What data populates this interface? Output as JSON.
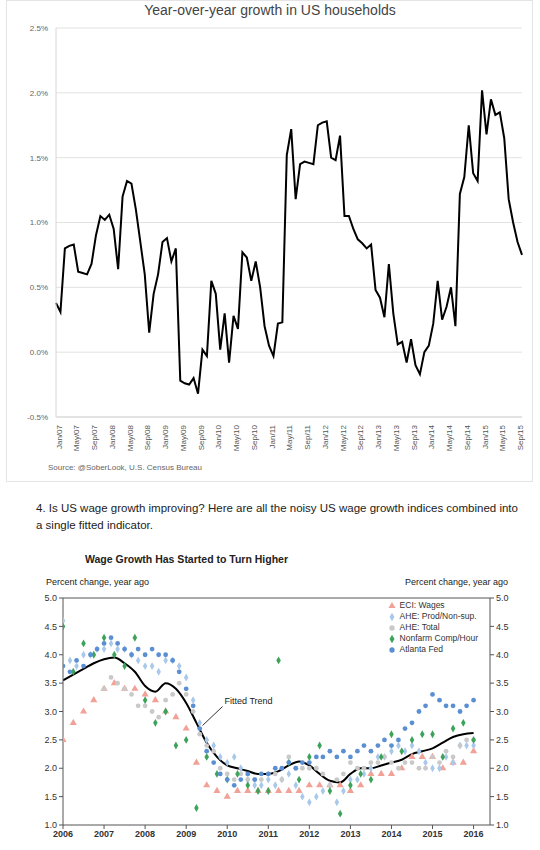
{
  "chart_data": [
    {
      "type": "line",
      "title": "Year-over-year growth in US households",
      "source": "Source: @SoberLook, U.S. Census Bureau",
      "categories": [
        "Jan/07",
        null,
        null,
        null,
        "May/07",
        null,
        null,
        null,
        "Sep/07",
        null,
        null,
        null,
        "Jan/08",
        null,
        null,
        null,
        "May/08",
        null,
        null,
        null,
        "Sep/08",
        null,
        null,
        null,
        "Jan/09",
        null,
        null,
        null,
        "May/09",
        null,
        null,
        null,
        "Sep/09",
        null,
        null,
        null,
        "Jan/10",
        null,
        null,
        null,
        "May/10",
        null,
        null,
        null,
        "Sep/10",
        null,
        null,
        null,
        "Jan/11",
        null,
        null,
        null,
        "May/11",
        null,
        null,
        null,
        "Sep/11",
        null,
        null,
        null,
        "Jan/12",
        null,
        null,
        null,
        "May/12",
        null,
        null,
        null,
        "Sep/12",
        null,
        null,
        null,
        "Jan/13",
        null,
        null,
        null,
        "May/13",
        null,
        null,
        null,
        "Sep/13",
        null,
        null,
        null,
        "Jan/14",
        null,
        null,
        null,
        "May/14",
        null,
        null,
        null,
        "Sep/14",
        null,
        null,
        null,
        "Jan/15",
        null,
        null,
        null,
        "May/15",
        null,
        null,
        null,
        "Sep/15",
        null
      ],
      "values": [
        0.38,
        0.31,
        0.8,
        0.82,
        0.83,
        0.62,
        0.61,
        0.6,
        0.68,
        0.9,
        1.05,
        1.02,
        1.06,
        0.95,
        0.64,
        1.2,
        1.32,
        1.3,
        1.1,
        0.85,
        0.6,
        0.15,
        0.45,
        0.6,
        0.85,
        0.88,
        0.7,
        0.8,
        -0.22,
        -0.24,
        -0.25,
        -0.2,
        -0.32,
        0.02,
        -0.03,
        0.55,
        0.45,
        0.02,
        0.3,
        -0.08,
        0.28,
        0.18,
        0.77,
        0.73,
        0.55,
        0.7,
        0.5,
        0.2,
        0.05,
        -0.03,
        0.22,
        0.23,
        1.52,
        1.72,
        1.18,
        1.45,
        1.47,
        1.46,
        1.45,
        1.75,
        1.77,
        1.78,
        1.5,
        1.48,
        1.67,
        1.05,
        1.05,
        0.95,
        0.87,
        0.84,
        0.8,
        0.83,
        0.48,
        0.42,
        0.27,
        0.68,
        0.3,
        0.06,
        0.08,
        -0.08,
        0.1,
        -0.1,
        -0.17,
        0,
        0.05,
        0.22,
        0.55,
        0.25,
        0.35,
        0.5,
        0.2,
        1.22,
        1.35,
        1.75,
        1.38,
        1.32,
        2.02,
        1.68,
        1.95,
        1.83,
        1.85,
        1.65,
        1.18,
        1.0,
        0.85,
        0.75
      ],
      "color": "#000000",
      "line_style": "solid",
      "ylim": [
        -0.5,
        2.5
      ],
      "yticks": [
        {
          "value": -0.5,
          "label": "-0.5%"
        },
        {
          "value": 0,
          "label": "0.0%"
        },
        {
          "value": 0.5,
          "label": "0.5%"
        },
        {
          "value": 1,
          "label": "1.0%"
        },
        {
          "value": 1.5,
          "label": "1.5%"
        },
        {
          "value": 2,
          "label": "2.0%"
        },
        {
          "value": 2.5,
          "label": "2.5%"
        }
      ],
      "grid": true
    },
    {
      "type": "scatter",
      "title": "Wage Growth Has Started to Turn Higher",
      "ylabel": "Percent change, year ago",
      "y2label": "Percent change, year ago",
      "xlim": [
        2006,
        2016.4
      ],
      "xticks": [
        2006,
        2007,
        2008,
        2009,
        2010,
        2011,
        2012,
        2013,
        2014,
        2015,
        2016
      ],
      "ylim": [
        1,
        5
      ],
      "yticks": [
        {
          "value": 1,
          "label": "1.0"
        },
        1.5,
        {
          "value": 2,
          "label": "2.0"
        },
        2.5,
        {
          "value": 3,
          "label": "3.0"
        },
        3.5,
        {
          "value": 4,
          "label": "4.0"
        },
        4.5,
        {
          "value": 5,
          "label": "5.0"
        }
      ],
      "y2lim": [
        1,
        5
      ],
      "y2ticks": [
        {
          "value": 1,
          "label": "1.0"
        },
        1.5,
        {
          "value": 2,
          "label": "2.0"
        },
        2.5,
        {
          "value": 3,
          "label": "3.0"
        },
        3.5,
        {
          "value": 4,
          "label": "4.0"
        },
        4.5,
        {
          "value": 5,
          "label": "5.0"
        }
      ],
      "grid": false,
      "legend": "upper right",
      "annotations": [
        {
          "text": "Fitted Trend",
          "x": 2009.35,
          "y": 2.7
        }
      ],
      "series": [
        {
          "name": "ECI: Wages",
          "type": "scatter",
          "color": "#f2a197",
          "marker": "triangle",
          "x": [
            2006,
            2006.25,
            2006.5,
            2006.75,
            2007,
            2007.25,
            2007.5,
            2007.75,
            2008,
            2008.25,
            2008.5,
            2008.75,
            2009,
            2009.25,
            2009.5,
            2009.75,
            2010,
            2010.25,
            2010.5,
            2010.75,
            2011,
            2011.25,
            2011.5,
            2011.75,
            2012,
            2012.25,
            2012.5,
            2012.75,
            2013,
            2013.25,
            2013.5,
            2013.75,
            2014,
            2014.25,
            2014.5,
            2014.75,
            2015,
            2015.25,
            2015.5,
            2015.75,
            2016
          ],
          "values": [
            2.5,
            2.8,
            3.0,
            3.2,
            3.4,
            3.5,
            3.4,
            3.4,
            3.3,
            3.2,
            3.0,
            2.9,
            2.7,
            2.1,
            1.7,
            1.6,
            1.5,
            1.6,
            1.6,
            1.6,
            1.6,
            1.6,
            1.6,
            1.6,
            1.7,
            1.7,
            1.7,
            1.7,
            1.6,
            1.7,
            1.9,
            1.9,
            1.9,
            2.0,
            2.2,
            2.2,
            2.2,
            2.0,
            2.1,
            2.1,
            2.3
          ]
        },
        {
          "name": "AHE: Prod/Non-sup.",
          "type": "scatter",
          "color": "#a9c9ea",
          "marker": "diamond",
          "x": [
            2006,
            2006.17,
            2006.33,
            2006.5,
            2006.67,
            2006.83,
            2007,
            2007.17,
            2007.33,
            2007.5,
            2007.67,
            2007.83,
            2008,
            2008.17,
            2008.33,
            2008.5,
            2008.67,
            2008.83,
            2009,
            2009.17,
            2009.33,
            2009.5,
            2009.67,
            2009.83,
            2010,
            2010.17,
            2010.33,
            2010.5,
            2010.67,
            2010.83,
            2011,
            2011.17,
            2011.33,
            2011.5,
            2011.67,
            2011.83,
            2012,
            2012.17,
            2012.33,
            2012.5,
            2012.67,
            2012.83,
            2013,
            2013.17,
            2013.33,
            2013.5,
            2013.67,
            2013.83,
            2014,
            2014.17,
            2014.33,
            2014.5,
            2014.67,
            2014.83,
            2015,
            2015.17,
            2015.33,
            2015.5,
            2015.67,
            2015.83,
            2016
          ],
          "values": [
            4.6,
            3.9,
            3.8,
            4.0,
            4.0,
            4.1,
            4.1,
            4.2,
            4.1,
            4.1,
            4.0,
            3.9,
            3.8,
            3.8,
            3.7,
            3.9,
            3.9,
            3.8,
            3.6,
            3.2,
            2.8,
            2.5,
            2.4,
            2.2,
            2.1,
            2.2,
            2.0,
            1.8,
            1.7,
            1.7,
            1.8,
            1.7,
            1.8,
            1.9,
            1.7,
            1.5,
            1.4,
            1.5,
            1.6,
            1.7,
            1.4,
            1.6,
            1.8,
            1.8,
            1.9,
            2.0,
            2.2,
            2.2,
            2.3,
            2.4,
            2.3,
            2.4,
            2.3,
            2.1,
            2.0,
            2.0,
            2.2,
            2.1,
            2.4,
            2.4,
            2.4
          ]
        },
        {
          "name": "AHE: Total",
          "type": "scatter",
          "color": "#c9c9c9",
          "marker": "circle",
          "x": [
            2007,
            2007.17,
            2007.33,
            2007.5,
            2007.67,
            2007.83,
            2008,
            2008.17,
            2008.33,
            2008.5,
            2008.67,
            2008.83,
            2009,
            2009.17,
            2009.33,
            2009.5,
            2009.67,
            2009.83,
            2010,
            2010.17,
            2010.33,
            2010.5,
            2010.67,
            2010.83,
            2011,
            2011.17,
            2011.33,
            2011.5,
            2011.67,
            2011.83,
            2012,
            2012.17,
            2012.33,
            2012.5,
            2012.67,
            2012.83,
            2013,
            2013.17,
            2013.33,
            2013.5,
            2013.67,
            2013.83,
            2014,
            2014.17,
            2014.33,
            2014.5,
            2014.67,
            2014.83,
            2015,
            2015.17,
            2015.33,
            2015.5,
            2015.67,
            2015.83,
            2016
          ],
          "values": [
            3.4,
            3.6,
            3.5,
            3.4,
            3.3,
            3.1,
            3.1,
            3.0,
            2.9,
            3.2,
            3.3,
            3.5,
            3.3,
            3.0,
            2.6,
            2.4,
            2.3,
            2.0,
            1.9,
            1.8,
            1.9,
            1.8,
            1.8,
            1.8,
            1.9,
            1.9,
            1.8,
            2.2,
            2.0,
            2.0,
            2.0,
            2.0,
            1.9,
            1.7,
            1.8,
            1.9,
            2.1,
            2.0,
            2.0,
            2.1,
            2.1,
            2.2,
            2.1,
            2.0,
            2.1,
            2.1,
            2.0,
            2.0,
            2.2,
            2.1,
            2.3,
            2.2,
            2.4,
            2.5,
            2.5
          ]
        },
        {
          "name": "Nonfarm Comp/Hour",
          "type": "scatter",
          "color": "#3da35a",
          "marker": "diamond",
          "x": [
            2006,
            2006.25,
            2006.5,
            2006.75,
            2007,
            2007.25,
            2007.5,
            2007.75,
            2008,
            2008.25,
            2008.5,
            2008.75,
            2009,
            2009.25,
            2009.5,
            2009.75,
            2010,
            2010.25,
            2010.5,
            2010.75,
            2011,
            2011.25,
            2011.5,
            2011.75,
            2012,
            2012.25,
            2012.5,
            2012.75,
            2013,
            2013.25,
            2013.5,
            2013.75,
            2014,
            2014.25,
            2014.5,
            2014.75,
            2015,
            2015.25,
            2015.5,
            2015.75,
            2016
          ],
          "values": [
            4.5,
            3.7,
            4.2,
            4.0,
            4.3,
            4.0,
            3.8,
            4.3,
            3.2,
            2.8,
            3.0,
            2.4,
            2.5,
            1.3,
            2.2,
            1.9,
            1.8,
            1.9,
            1.7,
            1.6,
            1.6,
            3.9,
            2.1,
            1.8,
            2.2,
            2.4,
            1.6,
            1.2,
            1.7,
            1.9,
            1.8,
            2.2,
            2.6,
            2.3,
            2.5,
            2.6,
            2.6,
            2.2,
            2.7,
            2.8,
            2.5
          ]
        },
        {
          "name": "Atlanta Fed",
          "type": "scatter",
          "color": "#5b8fd3",
          "marker": "circle",
          "x": [
            2006,
            2006.17,
            2006.33,
            2006.5,
            2006.67,
            2006.83,
            2007,
            2007.17,
            2007.33,
            2007.5,
            2007.67,
            2007.83,
            2008,
            2008.17,
            2008.33,
            2008.5,
            2008.67,
            2008.83,
            2009,
            2009.17,
            2009.33,
            2009.5,
            2009.67,
            2009.83,
            2010,
            2010.17,
            2010.33,
            2010.5,
            2010.67,
            2010.83,
            2011,
            2011.17,
            2011.33,
            2011.5,
            2011.67,
            2011.83,
            2012,
            2012.17,
            2012.33,
            2012.5,
            2012.67,
            2012.83,
            2013,
            2013.17,
            2013.33,
            2013.5,
            2013.67,
            2013.83,
            2014,
            2014.17,
            2014.33,
            2014.5,
            2014.67,
            2014.83,
            2015,
            2015.17,
            2015.33,
            2015.5,
            2015.67,
            2015.83,
            2016
          ],
          "values": [
            3.8,
            3.7,
            3.9,
            3.8,
            4.0,
            4.1,
            4.2,
            4.3,
            4.2,
            4.1,
            4.0,
            4.1,
            4.0,
            4.1,
            4.0,
            4.0,
            3.9,
            3.7,
            3.4,
            3.1,
            2.7,
            2.3,
            2.1,
            1.9,
            1.8,
            1.7,
            1.8,
            1.9,
            1.8,
            1.9,
            1.9,
            2.0,
            2.0,
            2.1,
            2.0,
            2.1,
            2.1,
            2.2,
            2.2,
            2.3,
            2.2,
            2.3,
            2.2,
            2.3,
            2.4,
            2.3,
            2.4,
            2.5,
            2.4,
            2.5,
            2.7,
            2.8,
            3.0,
            3.1,
            3.3,
            3.2,
            3.1,
            3.1,
            3.0,
            3.1,
            3.2
          ]
        },
        {
          "name": "Fitted Trend",
          "type": "line",
          "color": "#000000",
          "line_style": "solid",
          "x": [
            2006,
            2006.25,
            2006.5,
            2006.75,
            2007,
            2007.25,
            2007.5,
            2007.75,
            2008,
            2008.25,
            2008.5,
            2008.75,
            2009,
            2009.25,
            2009.5,
            2009.75,
            2010,
            2010.25,
            2010.5,
            2010.75,
            2011,
            2011.25,
            2011.5,
            2011.75,
            2012,
            2012.25,
            2012.5,
            2012.75,
            2013,
            2013.25,
            2013.5,
            2013.75,
            2014,
            2014.25,
            2014.5,
            2014.75,
            2015,
            2015.25,
            2015.5,
            2015.75,
            2016
          ],
          "values": [
            3.55,
            3.65,
            3.75,
            3.85,
            3.92,
            3.95,
            3.85,
            3.7,
            3.45,
            3.35,
            3.5,
            3.4,
            3.15,
            2.8,
            2.45,
            2.2,
            2.05,
            2.0,
            1.95,
            1.9,
            1.9,
            1.95,
            2.05,
            2.12,
            2.05,
            1.9,
            1.78,
            1.75,
            1.9,
            2.0,
            2.0,
            2.05,
            2.1,
            2.15,
            2.25,
            2.3,
            2.35,
            2.45,
            2.55,
            2.6,
            2.62
          ]
        }
      ]
    }
  ],
  "caption": "4. Is US wage growth improving? Here are all the noisy US wage growth indices combined into a single fitted indicator."
}
